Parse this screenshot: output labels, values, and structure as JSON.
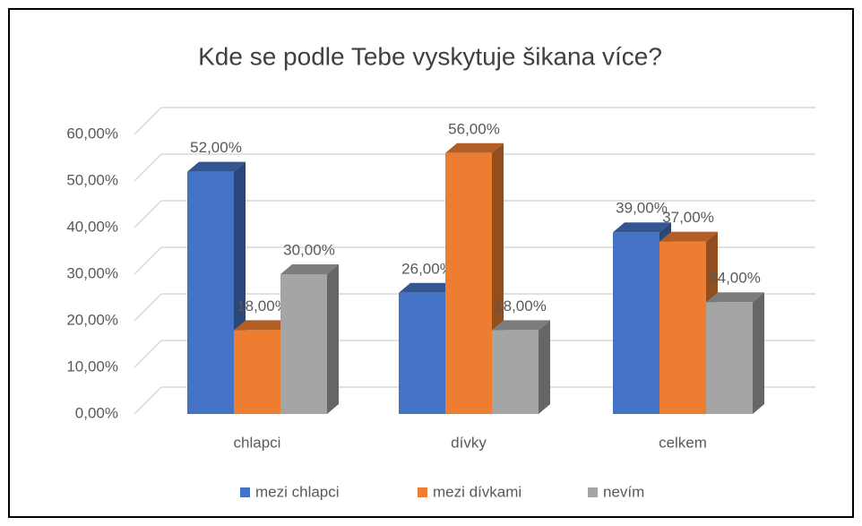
{
  "chart_data": {
    "type": "bar",
    "title": "Kde se podle Tebe vyskytuje šikana více?",
    "categories": [
      "chlapci",
      "dívky",
      "celkem"
    ],
    "series": [
      {
        "name": "mezi chlapci",
        "color": "#4472c4",
        "values": [
          52,
          26,
          39
        ],
        "value_labels": [
          "52,00%",
          "26,00%",
          "39,00%"
        ]
      },
      {
        "name": "mezi dívkami",
        "color": "#ed7d31",
        "values": [
          18,
          56,
          37
        ],
        "value_labels": [
          "18,00%",
          "56,00%",
          "37,00%"
        ]
      },
      {
        "name": "nevím",
        "color": "#a5a5a5",
        "values": [
          30,
          18,
          24
        ],
        "value_labels": [
          "30,00%",
          "18,00%",
          "24,00%"
        ]
      }
    ],
    "ylim": [
      0,
      60
    ],
    "yticks": [
      {
        "value": 0,
        "label": "0,00%"
      },
      {
        "value": 10,
        "label": "10,00%"
      },
      {
        "value": 20,
        "label": "20,00%"
      },
      {
        "value": 30,
        "label": "30,00%"
      },
      {
        "value": 40,
        "label": "40,00%"
      },
      {
        "value": 50,
        "label": "50,00%"
      },
      {
        "value": 60,
        "label": "60,00%"
      }
    ],
    "grid": true,
    "legend": "bottom"
  }
}
